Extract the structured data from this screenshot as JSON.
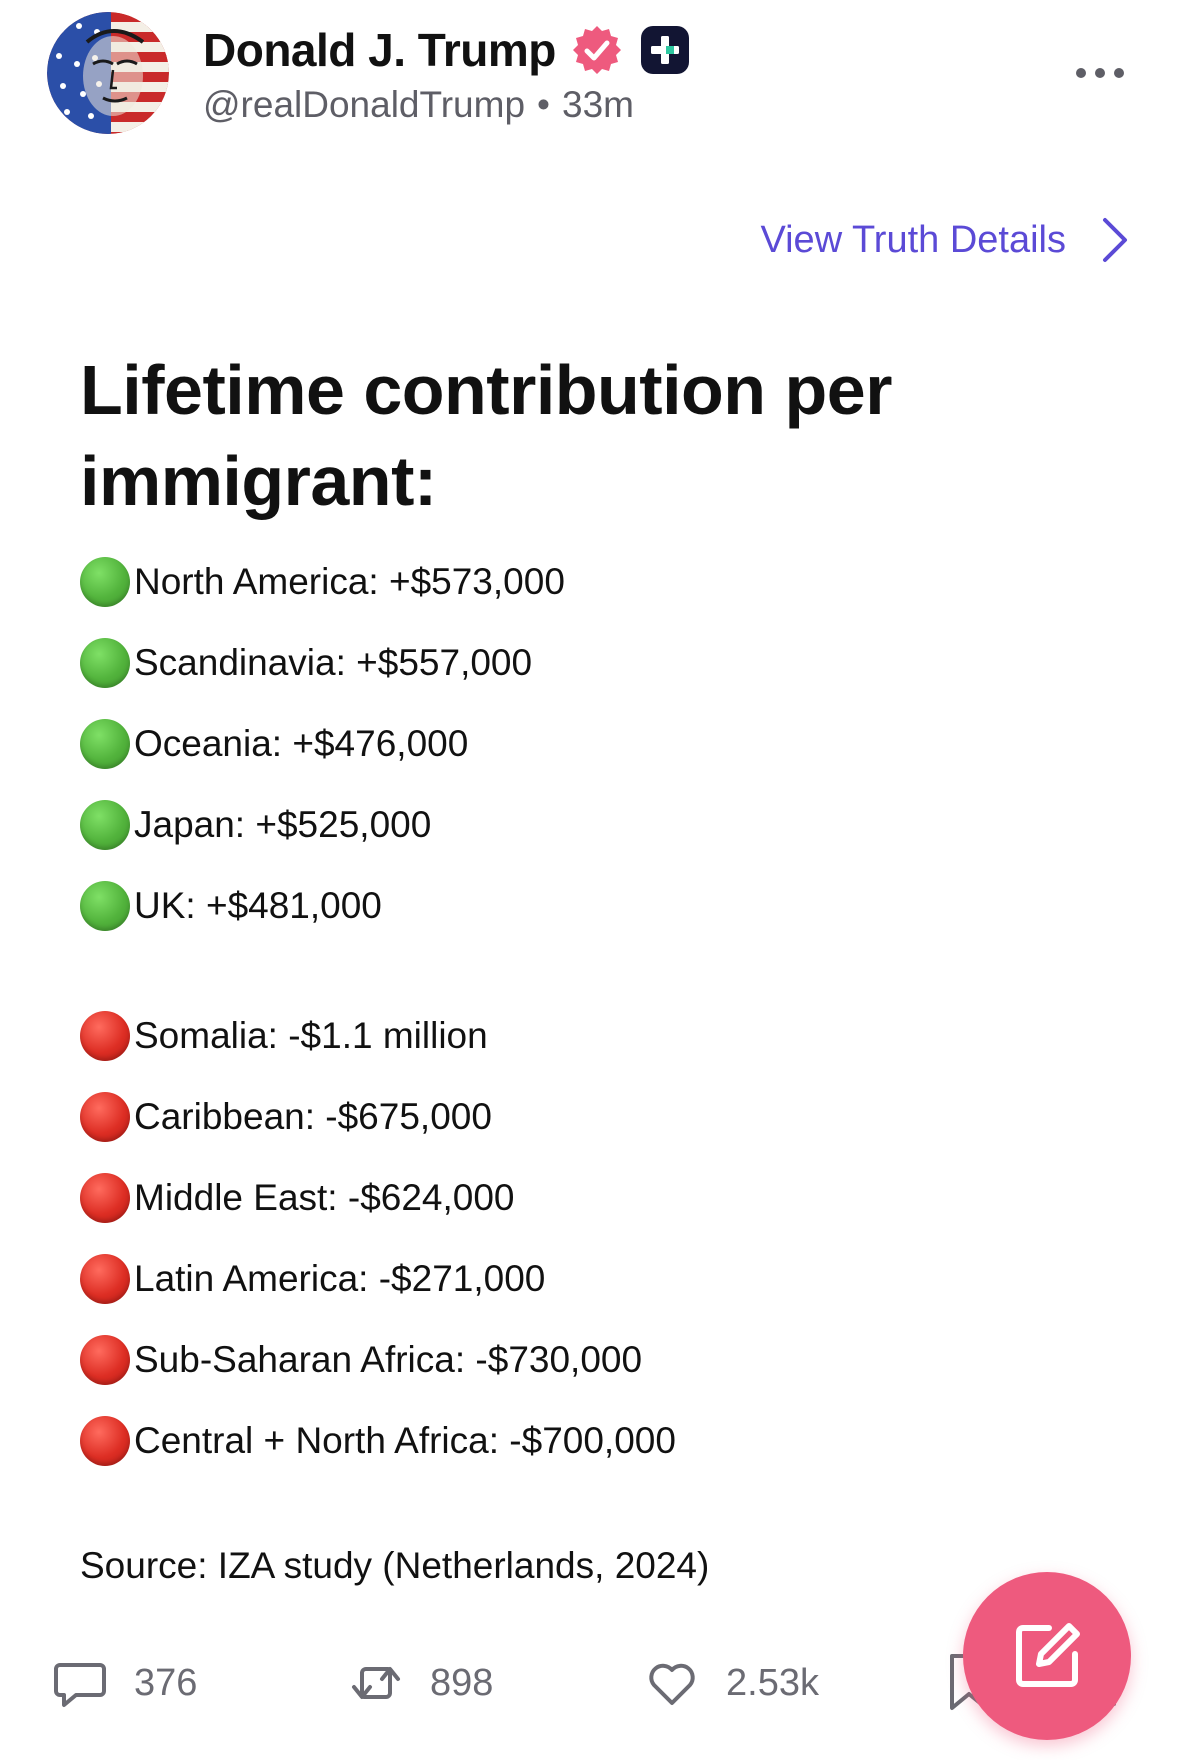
{
  "author": {
    "display_name": "Donald J. Trump",
    "handle": "@realDonaldTrump",
    "separator": "•",
    "time_ago": "33m",
    "verified_badge_color": "#ee5a7e"
  },
  "header": {
    "more_icon": "more-horizontal-icon",
    "view_details_label": "View Truth Details",
    "accent_color": "#5b4ad6"
  },
  "post": {
    "title": "Lifetime contribution per immigrant:",
    "positive": [
      {
        "status": "green-circle",
        "text": "North America: +$573,000"
      },
      {
        "status": "green-circle",
        "text": "Scandinavia: +$557,000"
      },
      {
        "status": "green-circle",
        "text": "Oceania: +$476,000"
      },
      {
        "status": "green-circle",
        "text": "Japan: +$525,000"
      },
      {
        "status": "green-circle",
        "text": "UK: +$481,000"
      }
    ],
    "negative": [
      {
        "status": "red-circle",
        "text": "Somalia: -$1.1 million"
      },
      {
        "status": "red-circle",
        "text": "Caribbean: -$675,000"
      },
      {
        "status": "red-circle",
        "text": "Middle East: -$624,000"
      },
      {
        "status": "red-circle",
        "text": "Latin America: -$271,000"
      },
      {
        "status": "red-circle",
        "text": "Sub-Saharan Africa: -$730,000"
      },
      {
        "status": "red-circle",
        "text": "Central + North Africa: -$700,000"
      }
    ],
    "source": "Source: IZA study (Netherlands, 2024)"
  },
  "actions": {
    "replies": "376",
    "retruths": "898",
    "likes": "2.53k"
  },
  "fab": {
    "icon": "compose-icon",
    "color": "#ee5a7e"
  }
}
